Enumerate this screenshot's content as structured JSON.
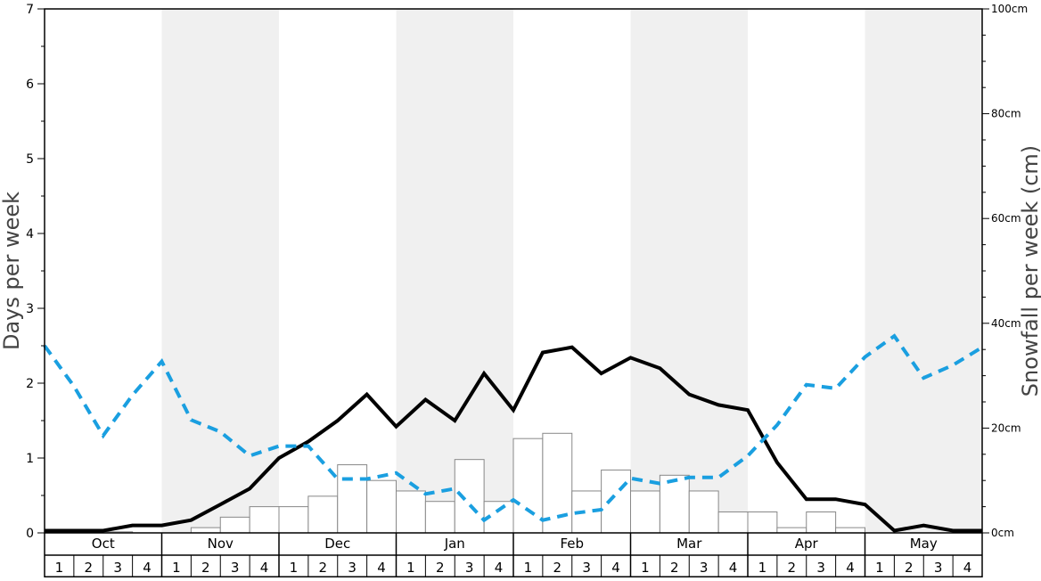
{
  "chart_data": {
    "type": "bar",
    "ylabel_left": "Days per week",
    "ylabel_right": "Snowfall per week (cm)",
    "left_axis": {
      "ylim": [
        0,
        7
      ],
      "ticks": [
        "0",
        "1",
        "2",
        "3",
        "4",
        "5",
        "6",
        "7"
      ]
    },
    "right_axis": {
      "ylim": [
        0,
        100
      ],
      "ticks": [
        "0cm",
        "20cm",
        "40cm",
        "60cm",
        "80cm",
        "100cm"
      ]
    },
    "months": [
      "Oct",
      "Nov",
      "Dec",
      "Jan",
      "Feb",
      "Mar",
      "Apr",
      "May"
    ],
    "week_labels": [
      "1",
      "2",
      "3",
      "4"
    ],
    "shaded_months": [
      "Nov",
      "Jan",
      "Mar",
      "May"
    ],
    "colors": {
      "solid_line": "#000000",
      "dashed_line": "#1a9fe0",
      "bars_fill": "#ffffff",
      "bars_stroke": "#888888",
      "shade": "#f0f0f0"
    },
    "series": [
      {
        "style": "bars",
        "axis": "right",
        "values": [
          0,
          0,
          0.2,
          0,
          0,
          1,
          3,
          5,
          5,
          7,
          13,
          10,
          8,
          6,
          14,
          6,
          18,
          19,
          8,
          12,
          8,
          11,
          8,
          4,
          4,
          1,
          4,
          1,
          0,
          0,
          0,
          0
        ]
      },
      {
        "style": "solid line",
        "axis": "left",
        "values": [
          0.03,
          0.03,
          0.03,
          0.1,
          0.1,
          0.17,
          0.38,
          0.59,
          1.0,
          1.22,
          1.5,
          1.85,
          1.42,
          1.78,
          1.5,
          2.13,
          1.64,
          2.41,
          2.48,
          2.13,
          2.34,
          2.2,
          1.85,
          1.71,
          1.64,
          0.94,
          0.45,
          0.45,
          0.38,
          0.03,
          0.1,
          0.03,
          0.03
        ]
      },
      {
        "style": "dashed line",
        "axis": "left",
        "values": [
          2.5,
          1.96,
          1.3,
          1.84,
          2.29,
          1.51,
          1.35,
          1.03,
          1.16,
          1.16,
          0.72,
          0.72,
          0.8,
          0.52,
          0.59,
          0.17,
          0.44,
          0.17,
          0.26,
          0.31,
          0.73,
          0.66,
          0.74,
          0.74,
          1.03,
          1.44,
          1.98,
          1.93,
          2.35,
          2.63,
          2.07,
          2.24,
          2.48
        ]
      }
    ]
  }
}
